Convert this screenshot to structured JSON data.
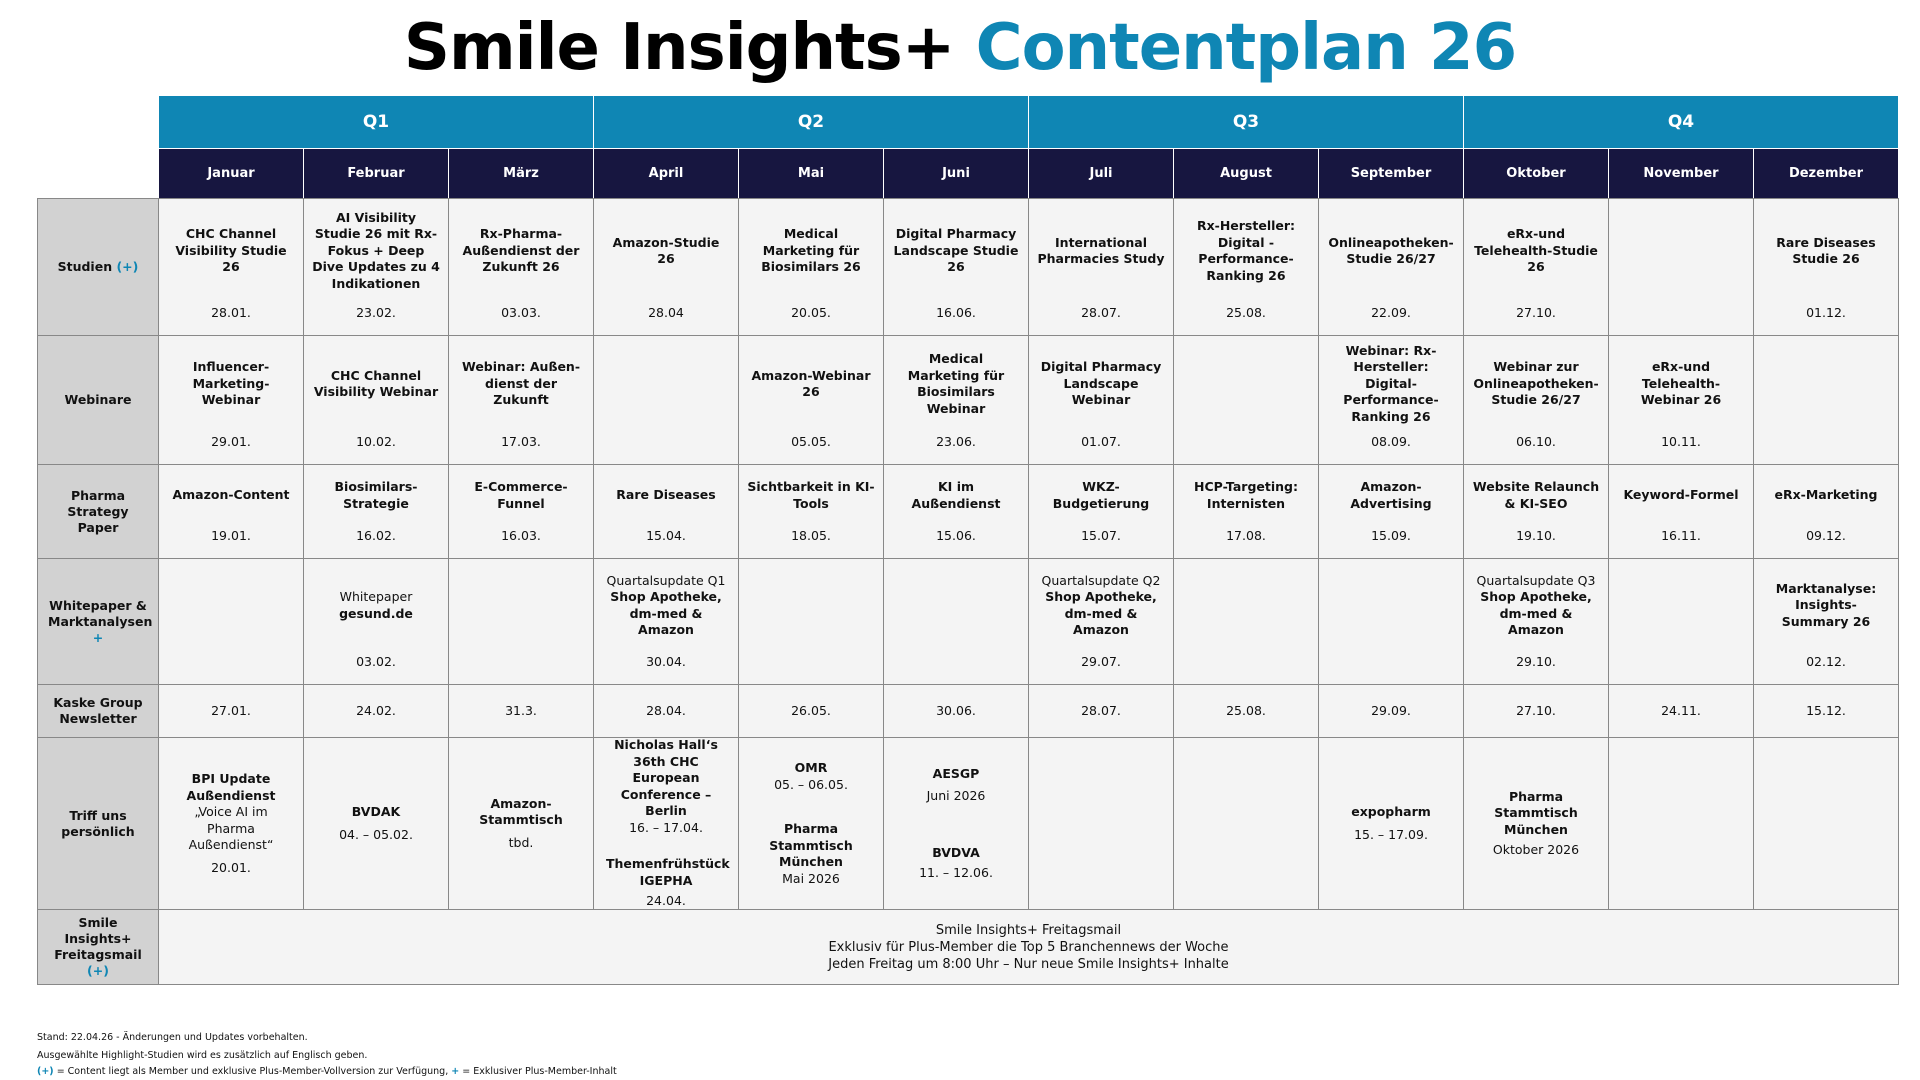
{
  "title": {
    "part1": "Smile Insights+",
    "part2": "Contentplan 26"
  },
  "quarters": [
    "Q1",
    "Q2",
    "Q3",
    "Q4"
  ],
  "months": [
    "Januar",
    "Februar",
    "März",
    "April",
    "Mai",
    "Juni",
    "Juli",
    "August",
    "September",
    "Oktober",
    "November",
    "Dezember"
  ],
  "rows": {
    "studien": {
      "label": "Studien",
      "marker": "(+)",
      "cells": [
        {
          "title": "CHC Channel Visibility Studie 26",
          "date": "28.01."
        },
        {
          "title": "AI Visibility Studie 26 mit Rx-Fokus + Deep Dive Updates zu 4 Indikationen",
          "date": "23.02."
        },
        {
          "title": "Rx-Pharma-Außendienst der Zukunft 26",
          "date": "03.03."
        },
        {
          "title": "Amazon-Studie 26",
          "date": "28.04"
        },
        {
          "title": "Medical Marketing für Biosimilars 26",
          "date": "20.05."
        },
        {
          "title": "Digital Pharmacy Landscape Studie 26",
          "date": "16.06."
        },
        {
          "title": "International Pharmacies Study",
          "date": "28.07."
        },
        {
          "title": "Rx-Hersteller: Digital -Performance-Ranking 26",
          "date": "25.08."
        },
        {
          "title": "Onlineapotheken-Studie 26/27",
          "date": "22.09."
        },
        {
          "title": "eRx-und Telehealth-Studie 26",
          "date": "27.10."
        },
        {
          "title": "",
          "date": ""
        },
        {
          "title": "Rare Diseases Studie 26",
          "date": "01.12."
        }
      ]
    },
    "webinare": {
      "label": "Webinare",
      "cells": [
        {
          "title": "Influencer-Marketing-Webinar",
          "date": "29.01."
        },
        {
          "title": "CHC Channel Visibility Webinar",
          "date": "10.02."
        },
        {
          "title": "Webinar: Außen-dienst der Zukunft",
          "date": "17.03."
        },
        {
          "title": "",
          "date": ""
        },
        {
          "title": "Amazon-Webinar 26",
          "date": "05.05."
        },
        {
          "title": "Medical Marketing für Biosimilars Webinar",
          "date": "23.06."
        },
        {
          "title": "Digital Pharmacy Landscape Webinar",
          "date": "01.07."
        },
        {
          "title": "",
          "date": ""
        },
        {
          "title": "Webinar: Rx-Hersteller: Digital-Performance-Ranking 26",
          "date": "08.09."
        },
        {
          "title": "Webinar zur Onlineapotheken-Studie 26/27",
          "date": "06.10."
        },
        {
          "title": "eRx-und Telehealth-Webinar 26",
          "date": "10.11."
        },
        {
          "title": "",
          "date": ""
        }
      ]
    },
    "pharma": {
      "label": "Pharma Strategy Paper",
      "cells": [
        {
          "title": "Amazon-Content",
          "date": "19.01."
        },
        {
          "title": "Biosimilars-Strategie",
          "date": "16.02."
        },
        {
          "title": "E-Commerce-Funnel",
          "date": "16.03."
        },
        {
          "title": "Rare Diseases",
          "date": "15.04."
        },
        {
          "title": "Sichtbarkeit in KI-Tools",
          "date": "18.05."
        },
        {
          "title": "KI im Außendienst",
          "date": "15.06."
        },
        {
          "title": "WKZ-Budgetierung",
          "date": "15.07."
        },
        {
          "title": "HCP-Targeting: Internisten",
          "date": "17.08."
        },
        {
          "title": "Amazon-Advertising",
          "date": "15.09."
        },
        {
          "title": "Website Relaunch & KI-SEO",
          "date": "19.10."
        },
        {
          "title": "Keyword-Formel",
          "date": "16.11."
        },
        {
          "title": "eRx-Marketing",
          "date": "09.12."
        }
      ]
    },
    "whitepaper": {
      "label": "Whitepaper & Marktanalysen",
      "marker": "+",
      "cells": [
        {
          "pre": "",
          "title": "",
          "date": ""
        },
        {
          "pre": "Whitepaper",
          "title": "gesund.de",
          "date": "03.02."
        },
        {
          "pre": "",
          "title": "",
          "date": ""
        },
        {
          "pre": "Quartalsupdate Q1",
          "title": "Shop Apotheke, dm-med & Amazon",
          "date": "30.04."
        },
        {
          "pre": "",
          "title": "",
          "date": ""
        },
        {
          "pre": "",
          "title": "",
          "date": ""
        },
        {
          "pre": "Quartalsupdate Q2",
          "title": "Shop Apotheke, dm-med & Amazon",
          "date": "29.07."
        },
        {
          "pre": "",
          "title": "",
          "date": ""
        },
        {
          "pre": "",
          "title": "",
          "date": ""
        },
        {
          "pre": "Quartalsupdate Q3",
          "title": "Shop Apotheke, dm-med & Amazon",
          "date": "29.10."
        },
        {
          "pre": "",
          "title": "",
          "date": ""
        },
        {
          "pre": "",
          "title": "Marktanalyse: Insights-Summary 26",
          "date": "02.12."
        }
      ]
    },
    "newsletter": {
      "label": "Kaske Group Newsletter",
      "cells": [
        "27.01.",
        "24.02.",
        "31.3.",
        "28.04.",
        "26.05.",
        "30.06.",
        "28.07.",
        "25.08.",
        "29.09.",
        "27.10.",
        "24.11.",
        "15.12."
      ]
    },
    "treffen": {
      "label": "Triff uns persönlich",
      "jan": {
        "title": "BPI Update Außendienst",
        "quote": "„Voice AI im Pharma Außendienst“",
        "date": "20.01."
      },
      "feb": {
        "title": "BVDAK",
        "date": "04. – 05.02."
      },
      "mar": {
        "title": "Amazon-Stammtisch",
        "date": "tbd."
      },
      "apr": {
        "title1": "Nicholas Hall‘s 36th CHC European Conference – Berlin",
        "date1": "16. – 17.04.",
        "title2": "Themenfrühstück IGEPHA",
        "date2": "24.04."
      },
      "may": {
        "title1": "OMR",
        "date1": "05. – 06.05.",
        "title2": "Pharma Stammtisch München",
        "date2": "Mai 2026"
      },
      "jun": {
        "title1": "AESGP",
        "date1": "Juni 2026",
        "title2": "BVDVA",
        "date2": "11. – 12.06."
      },
      "sep": {
        "title": "expopharm",
        "date": "15. – 17.09."
      },
      "oct": {
        "title": "Pharma Stammtisch München",
        "date": "Oktober 2026"
      }
    },
    "freitagsmail": {
      "label": "Smile Insights+ Freitagsmail",
      "marker": "(+)",
      "lines": [
        "Smile Insights+ Freitagsmail",
        "Exklusiv für Plus-Member die Top 5 Branchennews der Woche",
        "Jeden Freitag um 8:00 Uhr – Nur neue Smile Insights+ Inhalte"
      ]
    }
  },
  "footer": {
    "line1": "Stand: 22.04.26 - Änderungen und Updates vorbehalten.",
    "line2": "Ausgewählte Highlight-Studien wird es zusätzlich auf Englisch geben.",
    "legend1_marker": "(+)",
    "legend1_text": "= Content liegt als Member und exklusive Plus-Member-Vollversion zur Verfügung,",
    "legend2_marker": "+",
    "legend2_text": "= Exklusiver Plus-Member-Inhalt"
  },
  "colors": {
    "accent": "#0f86b4",
    "month_header": "#171640",
    "label_bg": "#d2d2d2",
    "cell_bg": "#f4f4f4"
  }
}
